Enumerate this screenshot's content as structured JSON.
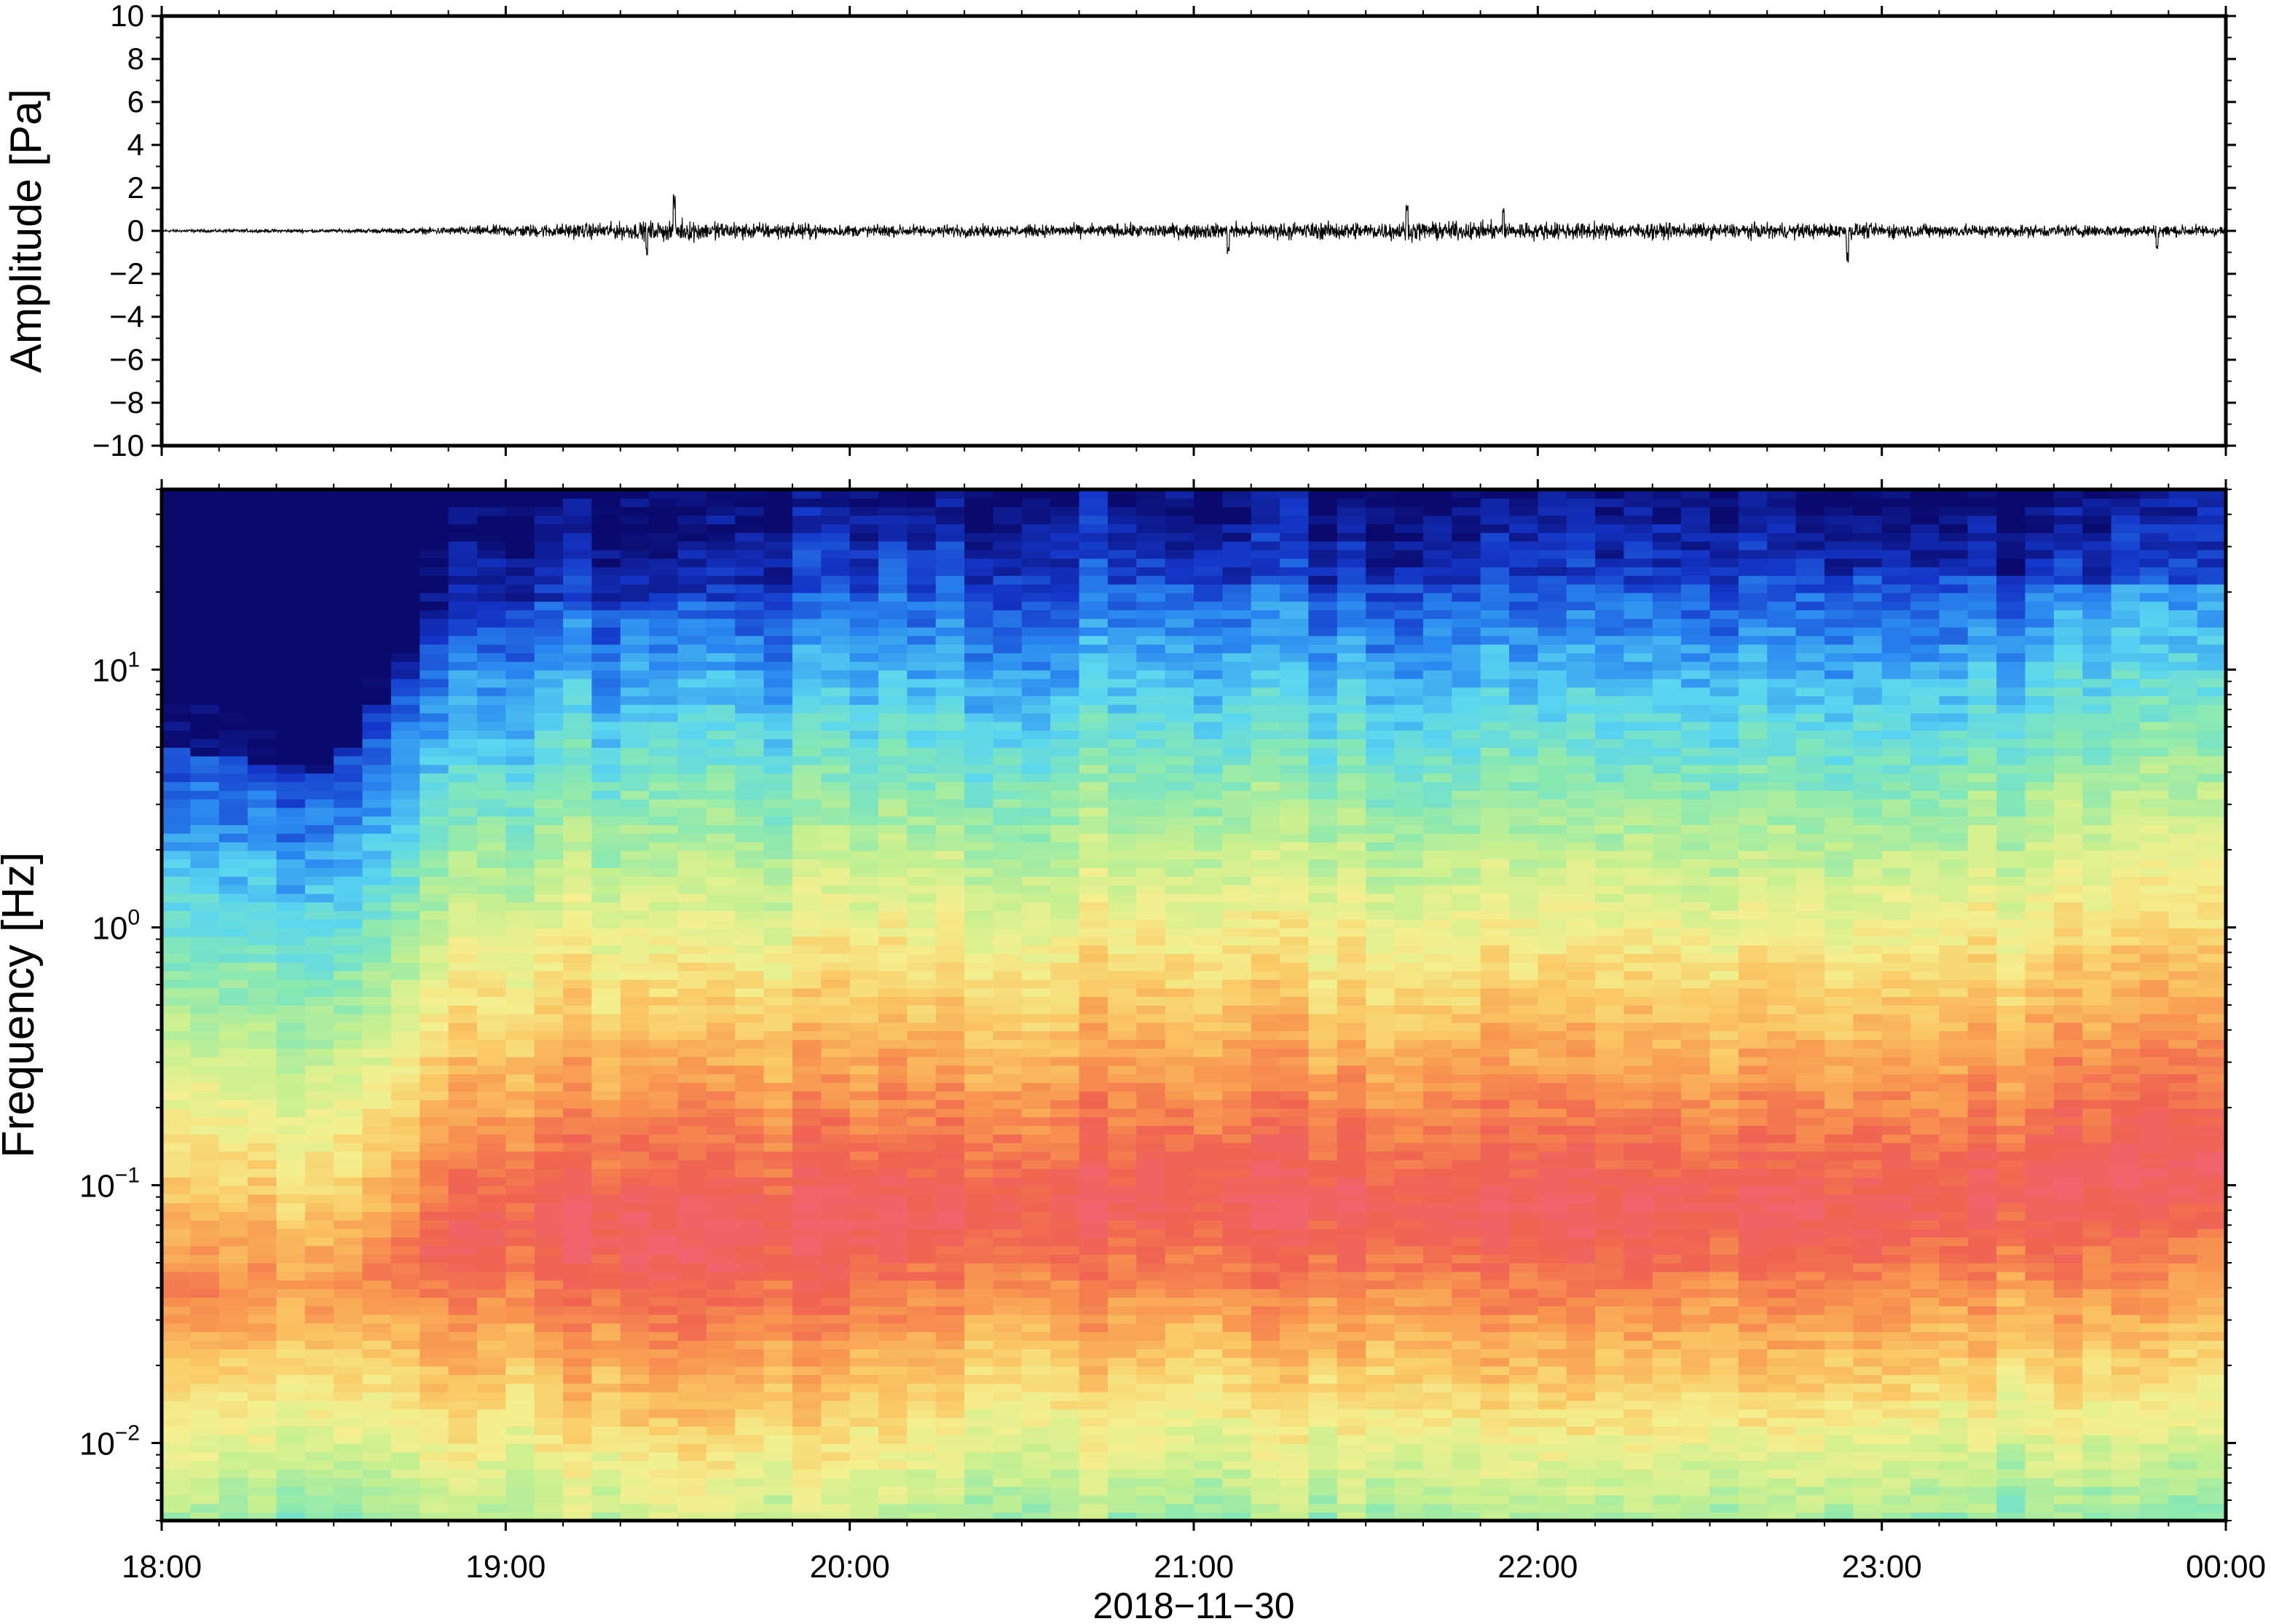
{
  "chart_data": [
    {
      "type": "line",
      "name": "waveform",
      "ylabel": "Amplitude [Pa]",
      "ylim": [
        -10,
        10
      ],
      "yticks": [
        -10,
        -8,
        -6,
        -4,
        -2,
        0,
        2,
        4,
        6,
        8,
        10
      ],
      "ytick_labels": [
        "−10",
        "−8",
        "−6",
        "−4",
        "−2",
        "0",
        "2",
        "4",
        "6",
        "8",
        "10"
      ],
      "xlim_hours": [
        18,
        24
      ],
      "x_tick_hours": [
        18,
        19,
        20,
        21,
        22,
        23,
        24
      ],
      "envelope": {
        "hours": [
          18.0,
          18.5,
          18.75,
          19.0,
          19.4,
          19.5,
          20.0,
          20.5,
          21.0,
          21.5,
          21.9,
          22.5,
          23.0,
          23.5,
          24.0
        ],
        "amplitude_pa": [
          0.1,
          0.12,
          0.2,
          0.4,
          0.6,
          0.7,
          0.4,
          0.4,
          0.5,
          0.6,
          0.6,
          0.5,
          0.5,
          0.4,
          0.4
        ]
      },
      "peaks": [
        {
          "hour": 19.49,
          "value": 1.7
        },
        {
          "hour": 19.41,
          "value": -1.2
        },
        {
          "hour": 21.1,
          "value": -1.2
        },
        {
          "hour": 21.62,
          "value": 1.4
        },
        {
          "hour": 21.9,
          "value": 1.4
        },
        {
          "hour": 22.9,
          "value": -1.5
        },
        {
          "hour": 23.8,
          "value": -1.0
        }
      ]
    },
    {
      "type": "heatmap",
      "name": "spectrogram",
      "ylabel": "Frequency [Hz]",
      "yscale": "log",
      "ylim_hz": [
        0.005,
        50
      ],
      "yticks_hz": [
        0.01,
        0.1,
        1,
        10
      ],
      "ytick_labels": [
        {
          "base": "10",
          "exp": "−2"
        },
        {
          "base": "10",
          "exp": "−1"
        },
        {
          "base": "10",
          "exp": "0"
        },
        {
          "base": "10",
          "exp": "1"
        }
      ],
      "xlim_hours": [
        18,
        24
      ],
      "x_tick_hours": [
        18,
        19,
        20,
        21,
        22,
        23,
        24
      ],
      "colormap": [
        "#0a0a6e",
        "#1436c8",
        "#2a88f0",
        "#5ad6f0",
        "#86e8b4",
        "#c8f090",
        "#f4f090",
        "#fac864",
        "#f89650",
        "#f06450",
        "#f0646e"
      ],
      "time_bins_hours": [
        18.0,
        18.5,
        19.0,
        19.5,
        20.0,
        20.25,
        20.5,
        21.0,
        21.5,
        22.0,
        22.5,
        23.0,
        23.5,
        24.0
      ],
      "peak_band_hz": [
        0.04,
        0.04,
        0.07,
        0.06,
        0.07,
        0.08,
        0.08,
        0.09,
        0.08,
        0.08,
        0.08,
        0.08,
        0.1,
        0.12
      ],
      "peak_level": [
        0.8,
        0.82,
        0.95,
        1.0,
        0.97,
        0.94,
        0.96,
        0.97,
        0.97,
        0.97,
        0.95,
        0.96,
        0.96,
        0.96
      ],
      "high_freq_level": [
        0.0,
        0.0,
        0.1,
        0.1,
        0.12,
        0.2,
        0.12,
        0.12,
        0.1,
        0.1,
        0.1,
        0.08,
        0.08,
        0.12
      ],
      "dark_band_top_hz": [
        5,
        4,
        18,
        18,
        20,
        45,
        22,
        22,
        22,
        22,
        22,
        24,
        22,
        22
      ]
    }
  ],
  "x_axis": {
    "tick_labels": [
      "18:00",
      "19:00",
      "20:00",
      "21:00",
      "22:00",
      "23:00",
      "00:00"
    ],
    "date_label": "2018−11−30"
  }
}
